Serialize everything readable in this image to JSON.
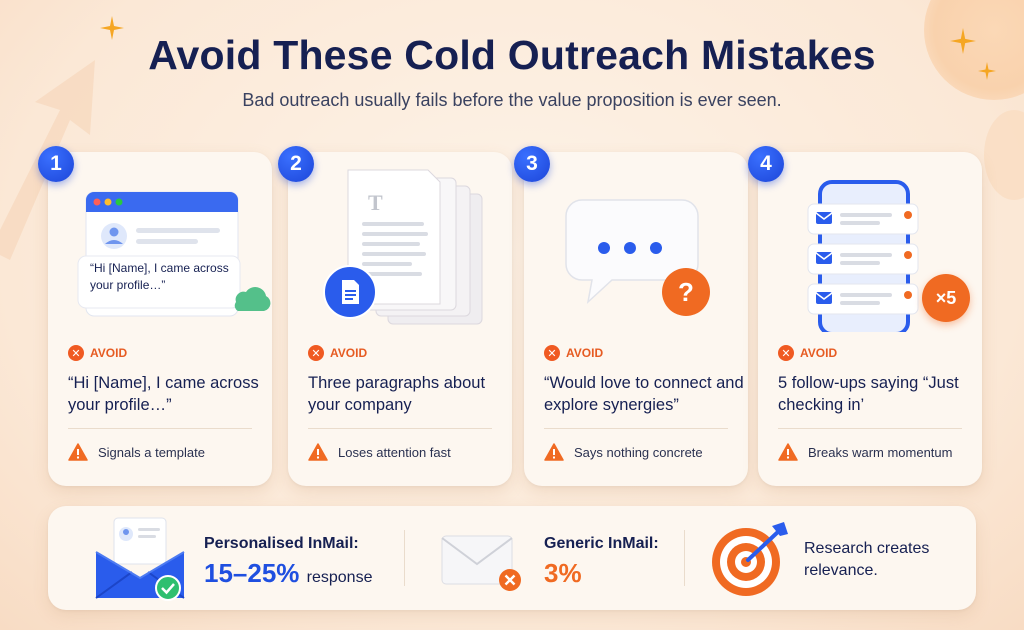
{
  "header": {
    "title": "Avoid These Cold Outreach Mistakes",
    "subtitle": "Bad outreach usually fails before the value proposition is ever seen."
  },
  "cards": [
    {
      "number": "1",
      "bubble_text": "“Hi [Name], I came across your profile…”",
      "avoid_label": "AVOID",
      "mistake": "“Hi [Name], I came across your profile…”",
      "effect": "Signals a template"
    },
    {
      "number": "2",
      "avoid_label": "AVOID",
      "mistake": "Three paragraphs about your company",
      "effect": "Loses attention fast"
    },
    {
      "number": "3",
      "avoid_label": "AVOID",
      "mistake": "“Would love to connect and explore synergies”",
      "effect": "Says nothing concrete"
    },
    {
      "number": "4",
      "badge": "×5",
      "avoid_label": "AVOID",
      "mistake": "5 follow-ups saying “Just checking in’",
      "effect": "Breaks warm momentum"
    }
  ],
  "stats": {
    "personalised_label": "Personalised InMail:",
    "personalised_value": "15–25%",
    "personalised_suffix": "response",
    "generic_label": "Generic InMail:",
    "generic_value": "3%",
    "research_text": "Research creates relevance."
  },
  "colors": {
    "accent_blue": "#1f4fe0",
    "accent_orange": "#f06a22",
    "title_navy": "#162052",
    "background": "#fbe8d6"
  }
}
